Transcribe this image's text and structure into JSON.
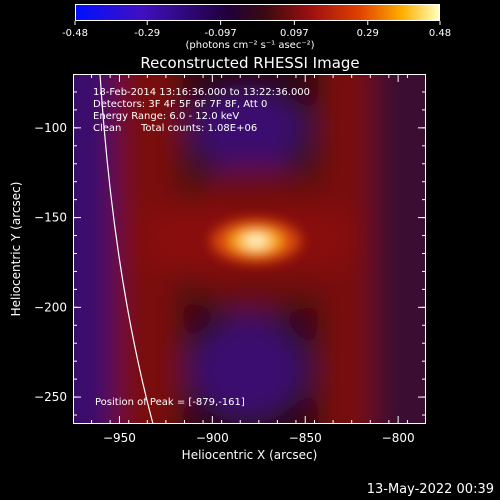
{
  "colorbar": {
    "ticks": [
      "-0.48",
      "-0.29",
      "-0.097",
      "0.097",
      "0.29",
      "0.48"
    ],
    "tick_values": [
      -0.48,
      -0.29,
      -0.097,
      0.097,
      0.29,
      0.48
    ],
    "range": [
      -0.48,
      0.48
    ],
    "units": "(photons cm⁻² s⁻¹ asec⁻²)"
  },
  "chart_data": {
    "type": "heatmap",
    "title": "Reconstructed RHESSI Image",
    "xlabel": "Heliocentric X (arcsec)",
    "ylabel": "Heliocentric Y (arcsec)",
    "xlim": [
      -975,
      -785
    ],
    "ylim": [
      -265,
      -70
    ],
    "x_ticks": [
      -950,
      -900,
      -850,
      -800
    ],
    "y_ticks": [
      -100,
      -150,
      -200,
      -250
    ],
    "peak": {
      "x": -879,
      "y": -161,
      "value": 0.48
    },
    "annotations": {
      "time": "18-Feb-2014 13:16:36.000 to 13:22:36.000",
      "detectors": "Detectors: 3F 4F 5F 6F 7F 8F, Att 0",
      "energy": "Energy Range: 6.0 - 12.0 keV",
      "clean_label": "Clean",
      "counts": "Total counts: 1.08E+06",
      "peak_position": "Position of Peak = [-879,-161]"
    }
  },
  "footer_date": "13-May-2022 00:39"
}
